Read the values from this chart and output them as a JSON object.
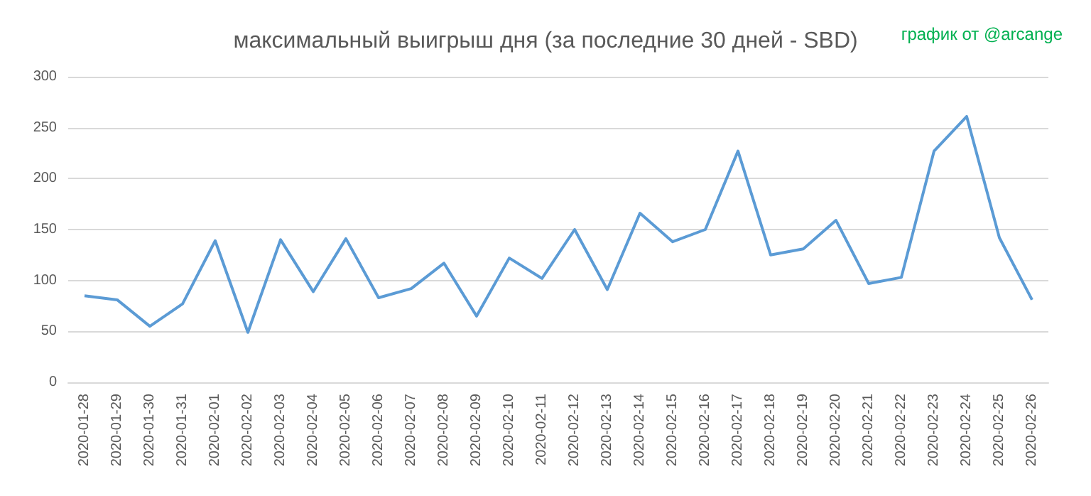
{
  "chart_data": {
    "type": "line",
    "title": "максимальный выигрыш дня (за последние 30 дней - SBD)",
    "annotations": [
      "график от @arcange"
    ],
    "categories": [
      "2020-01-28",
      "2020-01-29",
      "2020-01-30",
      "2020-01-31",
      "2020-02-01",
      "2020-02-02",
      "2020-02-03",
      "2020-02-04",
      "2020-02-05",
      "2020-02-06",
      "2020-02-07",
      "2020-02-08",
      "2020-02-09",
      "2020-02-10",
      "2020-02-11",
      "2020-02-12",
      "2020-02-13",
      "2020-02-14",
      "2020-02-15",
      "2020-02-16",
      "2020-02-17",
      "2020-02-18",
      "2020-02-19",
      "2020-02-20",
      "2020-02-21",
      "2020-02-22",
      "2020-02-23",
      "2020-02-24",
      "2020-02-25",
      "2020-02-26"
    ],
    "series": [
      {
        "color": "#5b9bd5",
        "values": [
          85,
          81,
          55,
          77,
          139,
          49,
          140,
          89,
          141,
          83,
          92,
          117,
          65,
          122,
          102,
          150,
          91,
          166,
          138,
          150,
          227,
          125,
          131,
          159,
          97,
          103,
          227,
          261,
          142,
          81
        ]
      }
    ],
    "ylim": [
      0,
      300
    ],
    "yticks": [
      0,
      50,
      100,
      150,
      200,
      250,
      300
    ],
    "grid": "y"
  }
}
